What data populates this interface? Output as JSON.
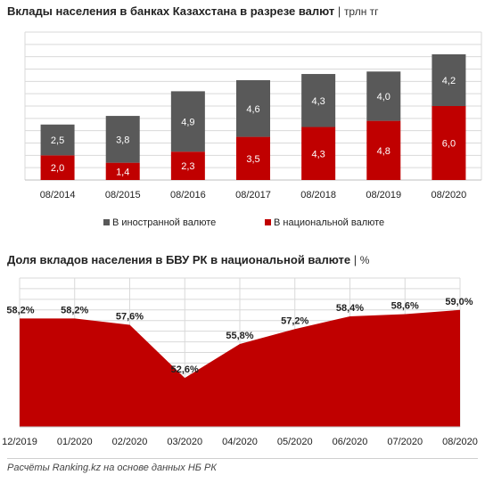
{
  "colors": {
    "foreign": "#595959",
    "national": "#c00000",
    "grid": "#d9d9d9"
  },
  "chart1": {
    "title": "Вклады населения в банках Казахстана в разрезе валют",
    "separator": "|",
    "unit": "трлн тг"
  },
  "chart2": {
    "title": "Доля вкладов населения в БВУ РК в национальной валюте",
    "separator": "|",
    "unit": "%"
  },
  "footer": {
    "source": "Расчёты Ranking.kz на основе данных НБ РК"
  },
  "chart_data": [
    {
      "type": "bar",
      "stacked": true,
      "categories": [
        "08/2014",
        "08/2015",
        "08/2016",
        "08/2017",
        "08/2018",
        "08/2019",
        "08/2020"
      ],
      "series": [
        {
          "name": "В национальной валюте",
          "values": [
            2.0,
            1.4,
            2.3,
            3.5,
            4.3,
            4.8,
            6.0
          ],
          "labels": [
            "2,0",
            "1,4",
            "2,3",
            "3,5",
            "4,3",
            "4,8",
            "6,0"
          ]
        },
        {
          "name": "В иностранной валюте",
          "values": [
            2.5,
            3.8,
            4.9,
            4.6,
            4.3,
            4.0,
            4.2
          ],
          "labels": [
            "2,5",
            "3,8",
            "4,9",
            "4,6",
            "4,3",
            "4,0",
            "4,2"
          ]
        }
      ],
      "legend": [
        "В иностранной валюте",
        "В национальной валюте"
      ],
      "legend_position": "bottom",
      "ylim": [
        0,
        12
      ],
      "grid": true
    },
    {
      "type": "area",
      "categories": [
        "12/2019",
        "01/2020",
        "02/2020",
        "03/2020",
        "04/2020",
        "05/2020",
        "06/2020",
        "07/2020",
        "08/2020"
      ],
      "values": [
        58.2,
        58.2,
        57.6,
        52.6,
        55.8,
        57.2,
        58.4,
        58.6,
        59.0
      ],
      "labels": [
        "58,2%",
        "58,2%",
        "57,6%",
        "52,6%",
        "55,8%",
        "57,2%",
        "58,4%",
        "58,6%",
        "59,0%"
      ],
      "ylim": [
        48,
        62
      ],
      "grid": true
    }
  ]
}
